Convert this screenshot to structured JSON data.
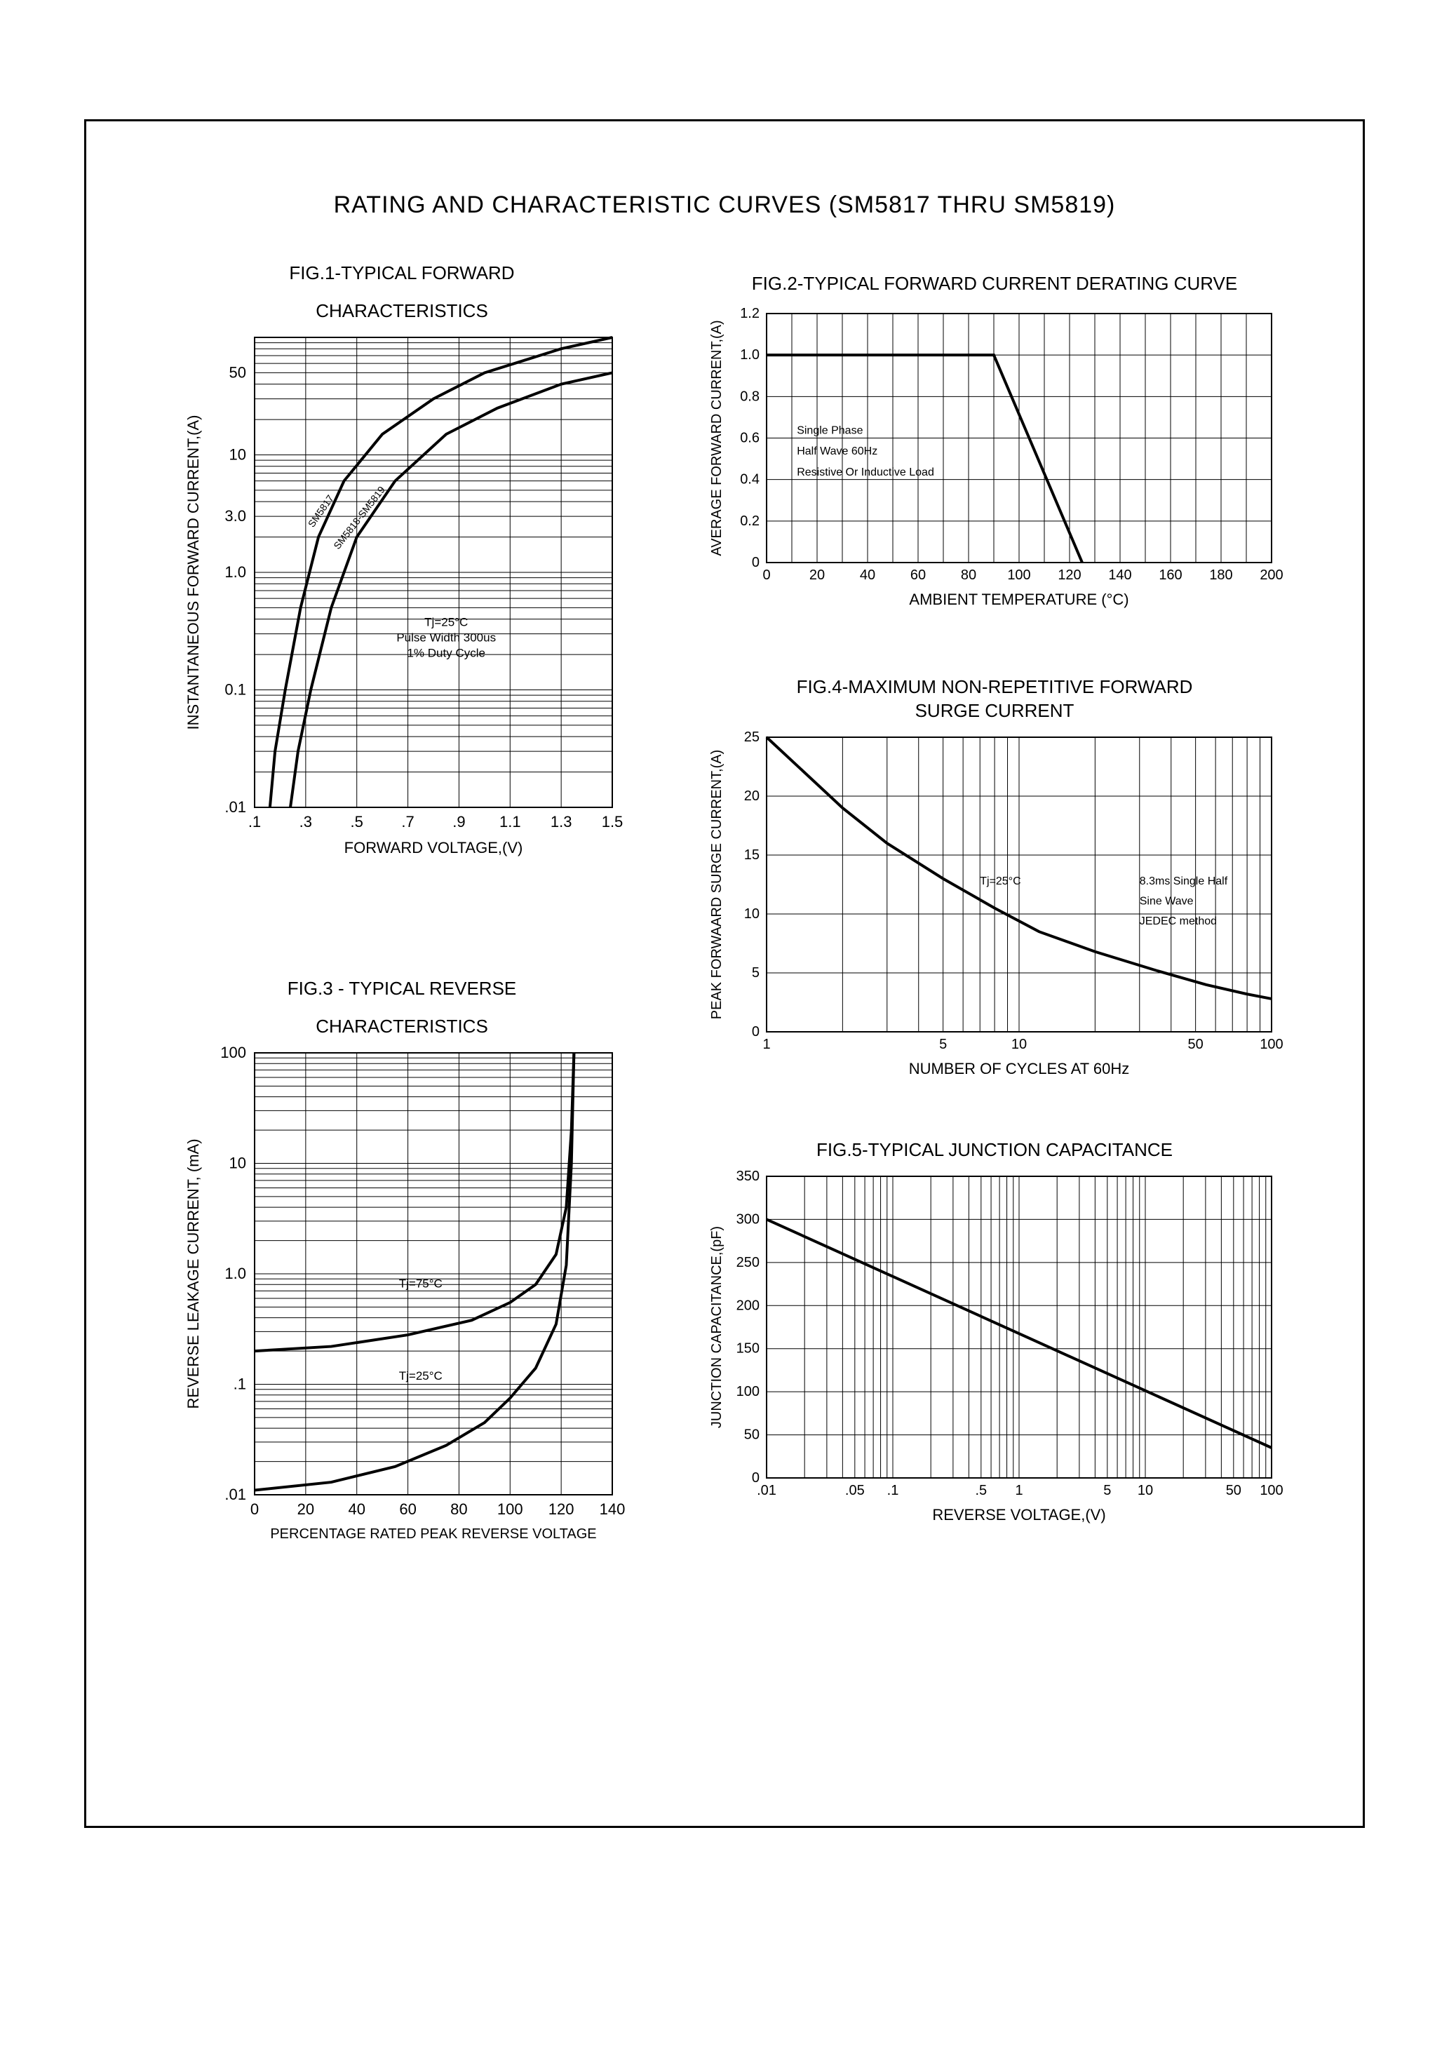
{
  "page": {
    "title": "RATING AND CHARACTERISTIC CURVES (SM5817 THRU SM5819)",
    "line_color": "#000000",
    "grid_color": "#000000",
    "bg_color": "#ffffff",
    "curve_width": 3,
    "grid_width": 1
  },
  "fig1": {
    "title1": "FIG.1-TYPICAL FORWARD",
    "title2": "CHARACTERISTICS",
    "xlabel": "FORWARD VOLTAGE,(V)",
    "ylabel": "INSTANTANEOUS FORWARD CURRENT,(A)",
    "xticks": [
      ".1",
      ".3",
      ".5",
      ".7",
      ".9",
      "1.1",
      "1.3",
      "1.5"
    ],
    "yticks": [
      ".01",
      "0.1",
      "1.0",
      "3.0",
      "10",
      "50"
    ],
    "series1_label": "SM5817",
    "series2_label": "SM5818-SM5819",
    "annot1": "Tj=25°C",
    "annot2": "Pulse Width 300us",
    "annot3": "1% Duty Cycle",
    "xlim": [
      0.1,
      1.5
    ],
    "ylim_log": [
      0.01,
      100
    ],
    "curve1": [
      [
        0.16,
        0.01
      ],
      [
        0.18,
        0.03
      ],
      [
        0.22,
        0.1
      ],
      [
        0.28,
        0.5
      ],
      [
        0.35,
        2.0
      ],
      [
        0.45,
        6.0
      ],
      [
        0.6,
        15
      ],
      [
        0.8,
        30
      ],
      [
        1.0,
        50
      ],
      [
        1.3,
        80
      ],
      [
        1.5,
        100
      ]
    ],
    "curve2": [
      [
        0.24,
        0.01
      ],
      [
        0.27,
        0.03
      ],
      [
        0.32,
        0.1
      ],
      [
        0.4,
        0.5
      ],
      [
        0.5,
        2.0
      ],
      [
        0.65,
        6.0
      ],
      [
        0.85,
        15
      ],
      [
        1.05,
        25
      ],
      [
        1.3,
        40
      ],
      [
        1.5,
        50
      ]
    ]
  },
  "fig2": {
    "title": "FIG.2-TYPICAL FORWARD CURRENT DERATING CURVE",
    "xlabel": "AMBIENT TEMPERATURE (°C)",
    "ylabel": "AVERAGE FORWARD CURRENT,(A)",
    "xticks": [
      "0",
      "20",
      "40",
      "60",
      "80",
      "100",
      "120",
      "140",
      "160",
      "180",
      "200"
    ],
    "yticks": [
      "0",
      "0.2",
      "0.4",
      "0.6",
      "0.8",
      "1.0",
      "1.2"
    ],
    "annot1": "Single Phase",
    "annot2": "Half Wave 60Hz",
    "annot3": "Resistive Or Inductive Load",
    "xlim": [
      0,
      200
    ],
    "ylim": [
      0,
      1.2
    ],
    "curve": [
      [
        0,
        1.0
      ],
      [
        90,
        1.0
      ],
      [
        125,
        0
      ]
    ]
  },
  "fig3": {
    "title1": "FIG.3 - TYPICAL REVERSE",
    "title2": "CHARACTERISTICS",
    "xlabel": "PERCENTAGE RATED PEAK REVERSE VOLTAGE",
    "ylabel": "REVERSE LEAKAGE CURRENT, (mA)",
    "xticks": [
      "0",
      "20",
      "40",
      "60",
      "80",
      "100",
      "120",
      "140"
    ],
    "yticks": [
      ".01",
      ".1",
      "1.0",
      "10",
      "100"
    ],
    "annot1": "Tj=75°C",
    "annot2": "Tj=25°C",
    "xlim": [
      0,
      140
    ],
    "ylim_log": [
      0.01,
      100
    ],
    "curve_top": [
      [
        0,
        0.2
      ],
      [
        30,
        0.22
      ],
      [
        60,
        0.28
      ],
      [
        85,
        0.38
      ],
      [
        100,
        0.55
      ],
      [
        110,
        0.8
      ],
      [
        118,
        1.5
      ],
      [
        122,
        4
      ],
      [
        124,
        20
      ],
      [
        125,
        100
      ]
    ],
    "curve_bot": [
      [
        0,
        0.011
      ],
      [
        30,
        0.013
      ],
      [
        55,
        0.018
      ],
      [
        75,
        0.028
      ],
      [
        90,
        0.045
      ],
      [
        100,
        0.075
      ],
      [
        110,
        0.14
      ],
      [
        118,
        0.35
      ],
      [
        122,
        1.2
      ],
      [
        124,
        10
      ],
      [
        125,
        100
      ]
    ]
  },
  "fig4": {
    "title1": "FIG.4-MAXIMUM NON-REPETITIVE FORWARD",
    "title2": "SURGE CURRENT",
    "xlabel": "NUMBER OF CYCLES AT 60Hz",
    "ylabel": "PEAK FORWAARD SURGE CURRENT,(A)",
    "xticks_major": [
      "1",
      "5",
      "10",
      "50",
      "100"
    ],
    "yticks": [
      "0",
      "5",
      "10",
      "15",
      "20",
      "25"
    ],
    "annot_left": "Tj=25°C",
    "annot_r1": "8.3ms Single Half",
    "annot_r2": "Sine Wave",
    "annot_r3": "JEDEC method",
    "xlim_log": [
      1,
      100
    ],
    "ylim": [
      0,
      25
    ],
    "curve": [
      [
        1,
        25
      ],
      [
        2,
        19
      ],
      [
        3,
        16
      ],
      [
        5,
        13
      ],
      [
        8,
        10.5
      ],
      [
        12,
        8.5
      ],
      [
        20,
        6.8
      ],
      [
        35,
        5.2
      ],
      [
        55,
        4.0
      ],
      [
        80,
        3.2
      ],
      [
        100,
        2.8
      ]
    ]
  },
  "fig5": {
    "title": "FIG.5-TYPICAL JUNCTION CAPACITANCE",
    "xlabel": "REVERSE VOLTAGE,(V)",
    "ylabel": "JUNCTION CAPACITANCE,(pF)",
    "xticks_major": [
      ".01",
      ".05",
      ".1",
      ".5",
      "1",
      "5",
      "10",
      "50",
      "100"
    ],
    "yticks": [
      "0",
      "50",
      "100",
      "150",
      "200",
      "250",
      "300",
      "350"
    ],
    "xlim_log": [
      0.01,
      100
    ],
    "ylim": [
      0,
      350
    ],
    "curve": [
      [
        0.01,
        300
      ],
      [
        100,
        35
      ]
    ]
  }
}
